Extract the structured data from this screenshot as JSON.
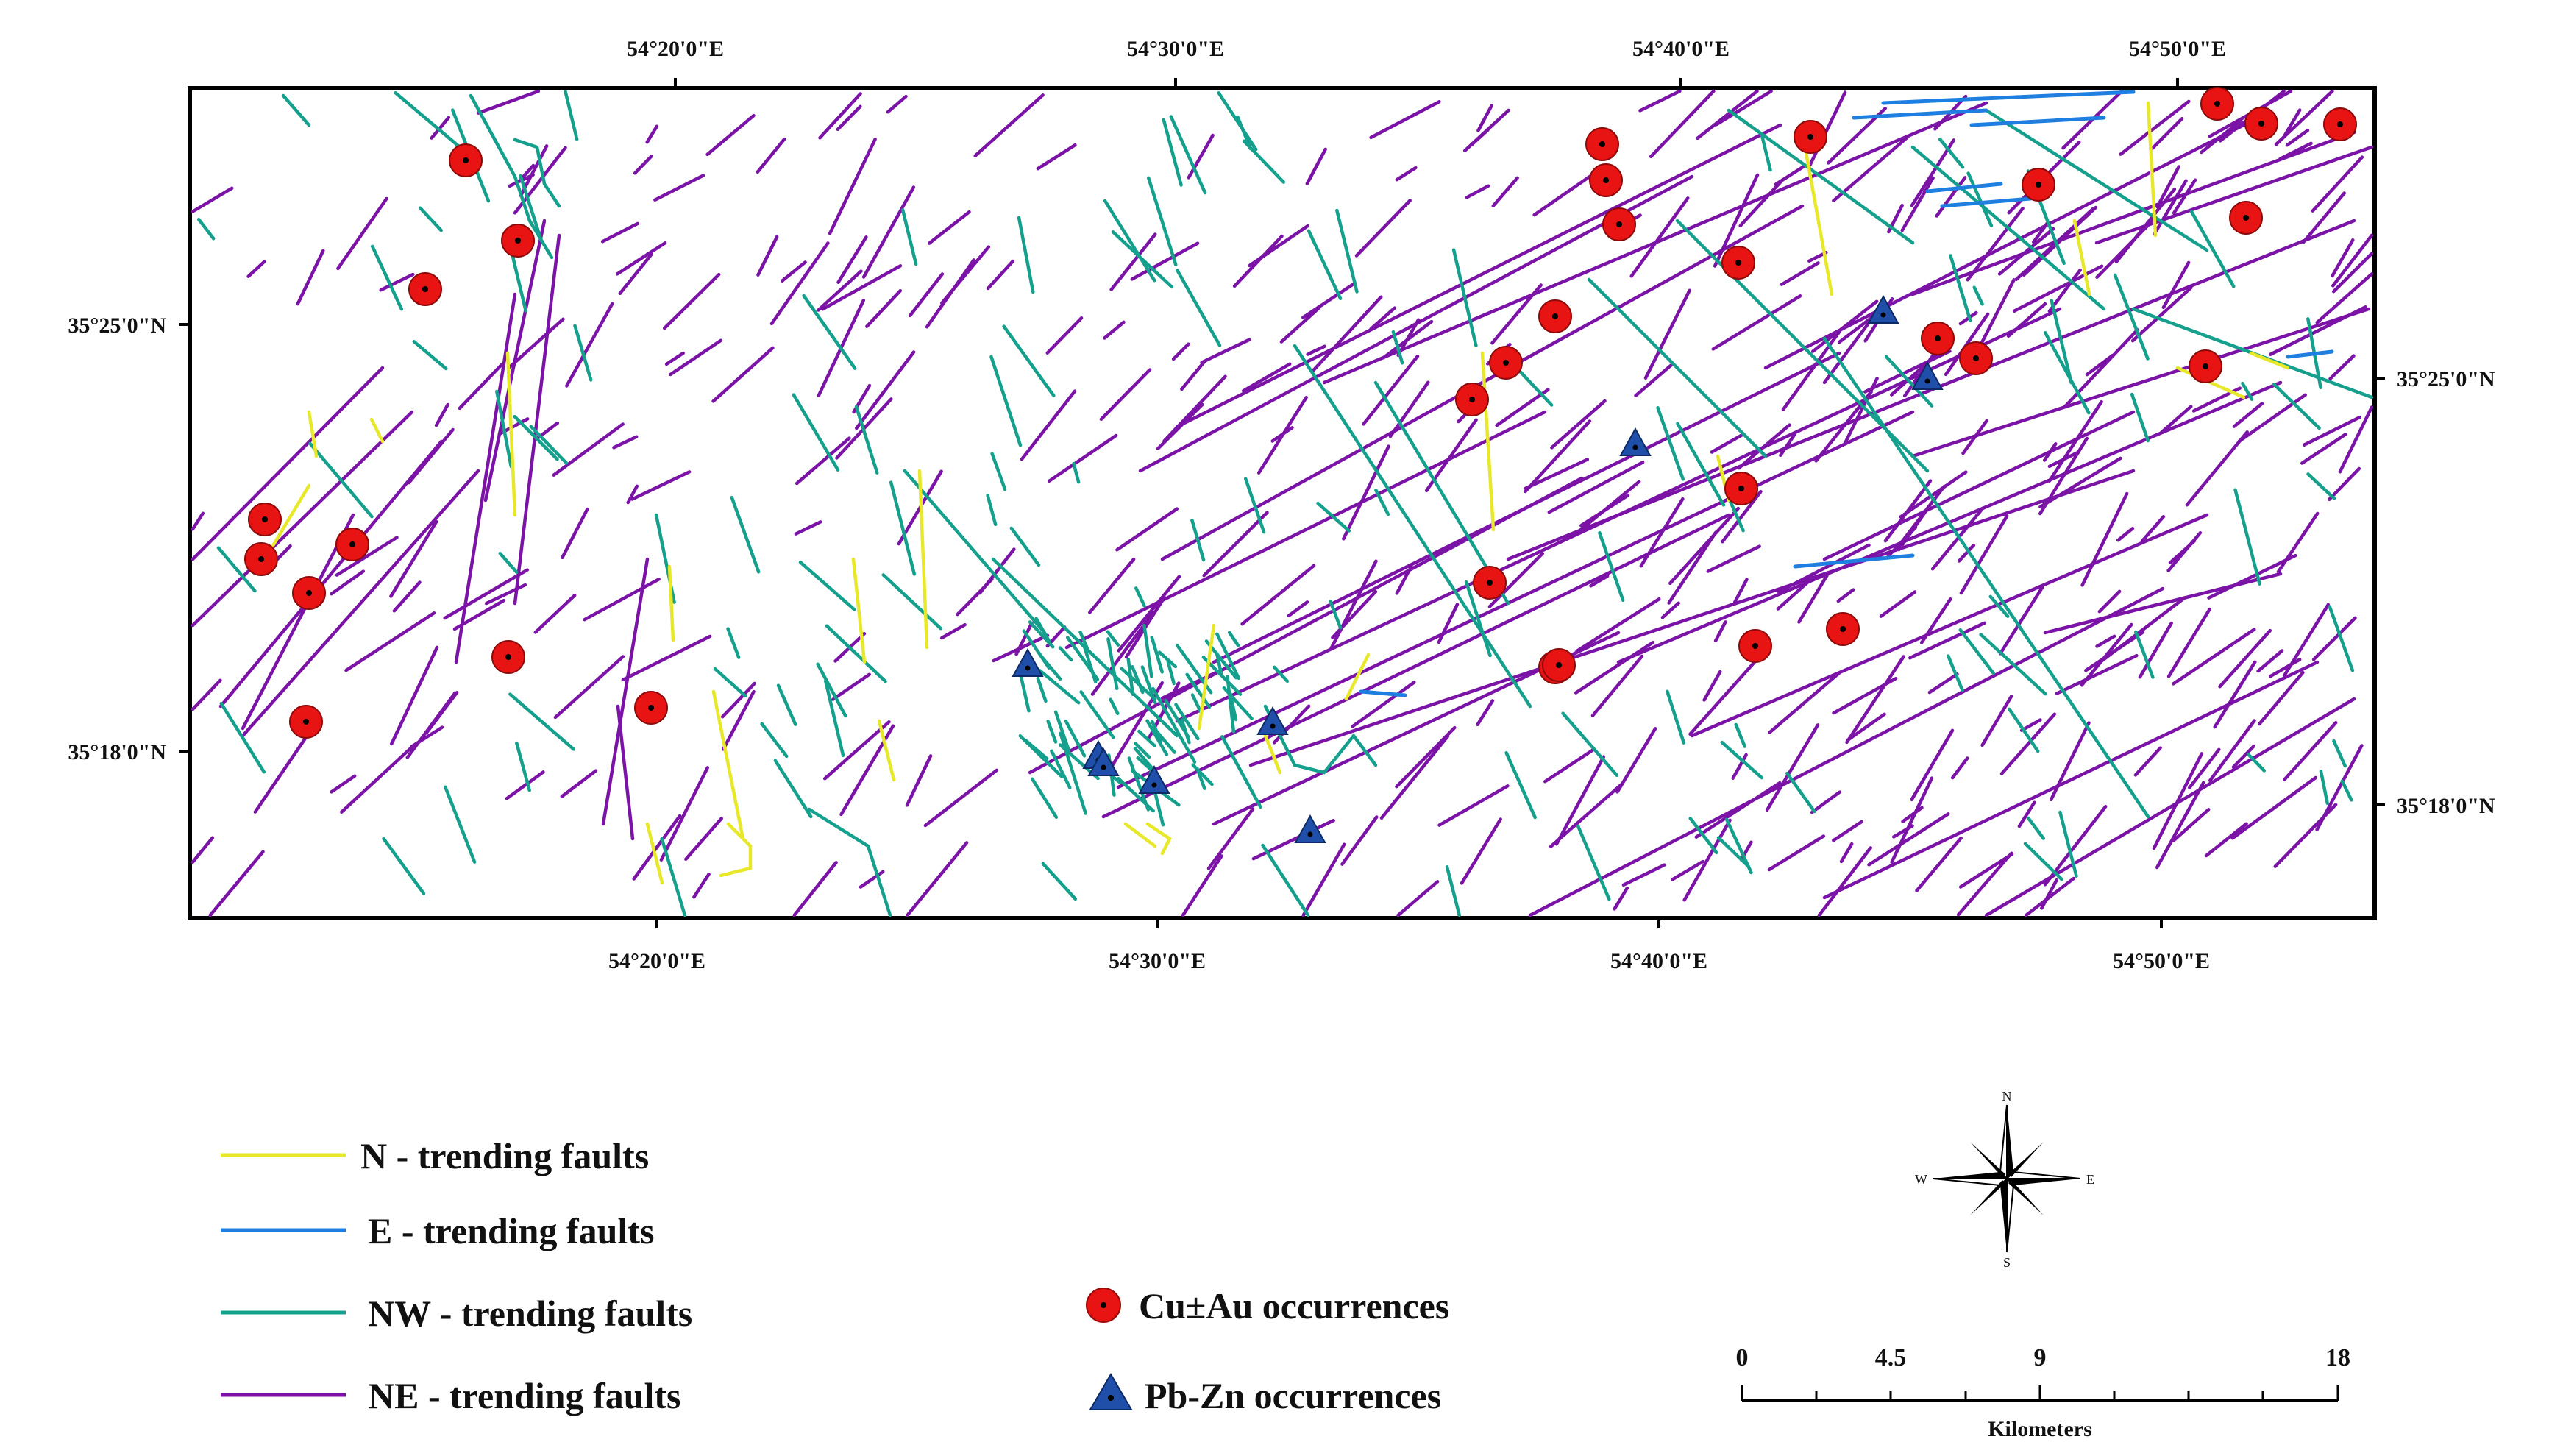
{
  "map": {
    "top_axis_labels": [
      "54°20'0\"E",
      "54°30'0\"E",
      "54°40'0\"E",
      "54°50'0\"E"
    ],
    "bottom_axis_labels": [
      "54°20'0\"E",
      "54°30'0\"E",
      "54°40'0\"E",
      "54°50'0\"E"
    ],
    "left_axis_labels": [
      "35°25'0\"N",
      "35°18'0\"N"
    ],
    "right_axis_labels": [
      "35°25'0\"N",
      "35°18'0\"N"
    ],
    "colors": {
      "n_faults": "#e8e82a",
      "e_faults": "#1e7fe0",
      "nw_faults": "#14a08c",
      "ne_faults": "#7b13a6",
      "cu_au": "#e81313",
      "pb_zn": "#1f4fa8"
    },
    "cu_au_count": 33,
    "pb_zn_count": 9
  },
  "legend": {
    "faults": [
      {
        "label": "N - trending faults",
        "color": "#e8e82a"
      },
      {
        "label": "E - trending faults",
        "color": "#1e7fe0"
      },
      {
        "label": "NW - trending faults",
        "color": "#14a08c"
      },
      {
        "label": "NE - trending faults",
        "color": "#7b13a6"
      }
    ],
    "occurrences": [
      {
        "label": "Cu±Au occurrences",
        "symbol": "red-circle"
      },
      {
        "label": "Pb-Zn occurrences",
        "symbol": "blue-triangle"
      }
    ]
  },
  "compass": {
    "n": "N",
    "s": "S",
    "e": "E",
    "w": "W"
  },
  "scale_bar": {
    "ticks": [
      "0",
      "4.5",
      "9",
      "18"
    ],
    "unit": "Kilometers"
  }
}
